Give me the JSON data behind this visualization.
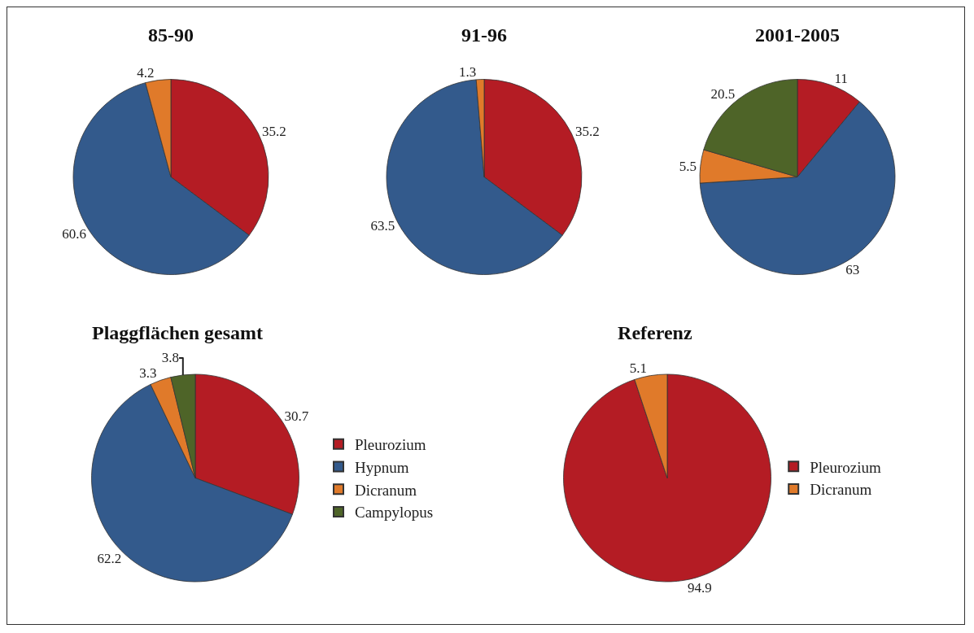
{
  "chart_data": [
    {
      "type": "pie",
      "title": "85-90",
      "categories": [
        null,
        null,
        null
      ],
      "values": [
        35.2,
        60.6,
        4.2
      ],
      "colors": [
        "#b41c24",
        "#335a8c",
        "#e07a2a"
      ],
      "data_labels": true,
      "legend": false
    },
    {
      "type": "pie",
      "title": "91-96",
      "categories": [
        null,
        null,
        null
      ],
      "values": [
        35.2,
        63.5,
        1.3
      ],
      "colors": [
        "#b41c24",
        "#335a8c",
        "#e07a2a"
      ],
      "data_labels": true,
      "legend": false
    },
    {
      "type": "pie",
      "title": "2001-2005",
      "categories": [
        null,
        null,
        null,
        null
      ],
      "values": [
        11,
        63,
        5.5,
        20.5
      ],
      "colors": [
        "#b41c24",
        "#335a8c",
        "#e07a2a",
        "#4e6428"
      ],
      "data_labels": true,
      "legend": false
    },
    {
      "type": "pie",
      "title": "Plaggflächen gesamt",
      "categories": [
        "Pleurozium",
        "Hypnum",
        "Dicranum",
        "Campylopus"
      ],
      "values": [
        30.7,
        62.2,
        3.3,
        3.8
      ],
      "colors": [
        "#b41c24",
        "#335a8c",
        "#e07a2a",
        "#4e6428"
      ],
      "data_labels": true,
      "legend": "right"
    },
    {
      "type": "pie",
      "title": "Referenz",
      "categories": [
        "Pleurozium",
        "Dicranum"
      ],
      "values": [
        94.9,
        5.1
      ],
      "colors": [
        "#b41c24",
        "#e07a2a"
      ],
      "data_labels": true,
      "legend": "right"
    }
  ]
}
